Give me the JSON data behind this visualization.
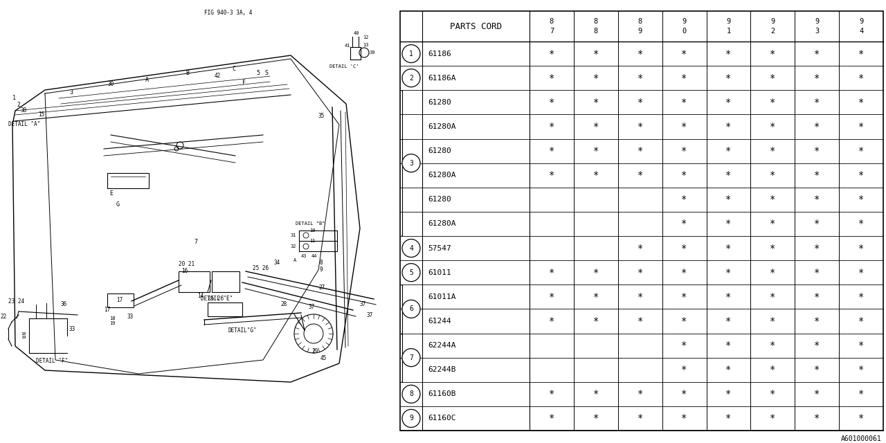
{
  "bg_color": "#ffffff",
  "line_color": "#000000",
  "text_color": "#000000",
  "col_header": "PARTS CORD",
  "year_cols_top": [
    "8",
    "8",
    "8",
    "9",
    "9",
    "9",
    "9",
    "9"
  ],
  "year_cols_bot": [
    "7",
    "8",
    "9",
    "0",
    "1",
    "2",
    "3",
    "4"
  ],
  "rows": [
    {
      "ref": "1",
      "part": "61186",
      "marks": [
        1,
        1,
        1,
        1,
        1,
        1,
        1,
        1
      ],
      "group_start": true,
      "group_end": true
    },
    {
      "ref": "2",
      "part": "61186A",
      "marks": [
        1,
        1,
        1,
        1,
        1,
        1,
        1,
        1
      ],
      "group_start": true,
      "group_end": true
    },
    {
      "ref": "",
      "part": "61280",
      "marks": [
        1,
        1,
        1,
        1,
        1,
        1,
        1,
        1
      ],
      "group_start": false,
      "group_end": false
    },
    {
      "ref": "",
      "part": "61280A",
      "marks": [
        1,
        1,
        1,
        1,
        1,
        1,
        1,
        1
      ],
      "group_start": false,
      "group_end": false
    },
    {
      "ref": "3",
      "part": "61280",
      "marks": [
        1,
        1,
        1,
        1,
        1,
        1,
        1,
        1
      ],
      "group_start": false,
      "group_end": false
    },
    {
      "ref": "",
      "part": "61280A",
      "marks": [
        1,
        1,
        1,
        1,
        1,
        1,
        1,
        1
      ],
      "group_start": false,
      "group_end": false
    },
    {
      "ref": "",
      "part": "61280",
      "marks": [
        0,
        0,
        0,
        1,
        1,
        1,
        1,
        1
      ],
      "group_start": false,
      "group_end": false
    },
    {
      "ref": "",
      "part": "61280A",
      "marks": [
        0,
        0,
        0,
        1,
        1,
        1,
        1,
        1
      ],
      "group_start": false,
      "group_end": false
    },
    {
      "ref": "4",
      "part": "57547",
      "marks": [
        0,
        0,
        1,
        1,
        1,
        1,
        1,
        1
      ],
      "group_start": true,
      "group_end": true
    },
    {
      "ref": "5",
      "part": "61011",
      "marks": [
        1,
        1,
        1,
        1,
        1,
        1,
        1,
        1
      ],
      "group_start": true,
      "group_end": true
    },
    {
      "ref": "6",
      "part": "61011A",
      "marks": [
        1,
        1,
        1,
        1,
        1,
        1,
        1,
        1
      ],
      "group_start": true,
      "group_end": true
    },
    {
      "ref": "",
      "part": "61244",
      "marks": [
        1,
        1,
        1,
        1,
        1,
        1,
        1,
        1
      ],
      "group_start": false,
      "group_end": false
    },
    {
      "ref": "7",
      "part": "62244A",
      "marks": [
        0,
        0,
        0,
        1,
        1,
        1,
        1,
        1
      ],
      "group_start": false,
      "group_end": false
    },
    {
      "ref": "",
      "part": "62244B",
      "marks": [
        0,
        0,
        0,
        1,
        1,
        1,
        1,
        1
      ],
      "group_start": false,
      "group_end": false
    },
    {
      "ref": "8",
      "part": "61160B",
      "marks": [
        1,
        1,
        1,
        1,
        1,
        1,
        1,
        1
      ],
      "group_start": true,
      "group_end": true
    },
    {
      "ref": "9",
      "part": "61160C",
      "marks": [
        1,
        1,
        1,
        1,
        1,
        1,
        1,
        1
      ],
      "group_start": true,
      "group_end": true
    }
  ],
  "ref_groups": [
    {
      "ref": "1",
      "rows": [
        0
      ]
    },
    {
      "ref": "2",
      "rows": [
        1
      ]
    },
    {
      "ref": "3",
      "rows": [
        2,
        3,
        4,
        5,
        6,
        7
      ]
    },
    {
      "ref": "4",
      "rows": [
        8
      ]
    },
    {
      "ref": "5",
      "rows": [
        9
      ]
    },
    {
      "ref": "6",
      "rows": [
        10,
        11
      ]
    },
    {
      "ref": "7",
      "rows": [
        12,
        13
      ]
    },
    {
      "ref": "8",
      "rows": [
        14
      ]
    },
    {
      "ref": "9",
      "rows": [
        15
      ]
    }
  ],
  "footnote": "A601000061"
}
